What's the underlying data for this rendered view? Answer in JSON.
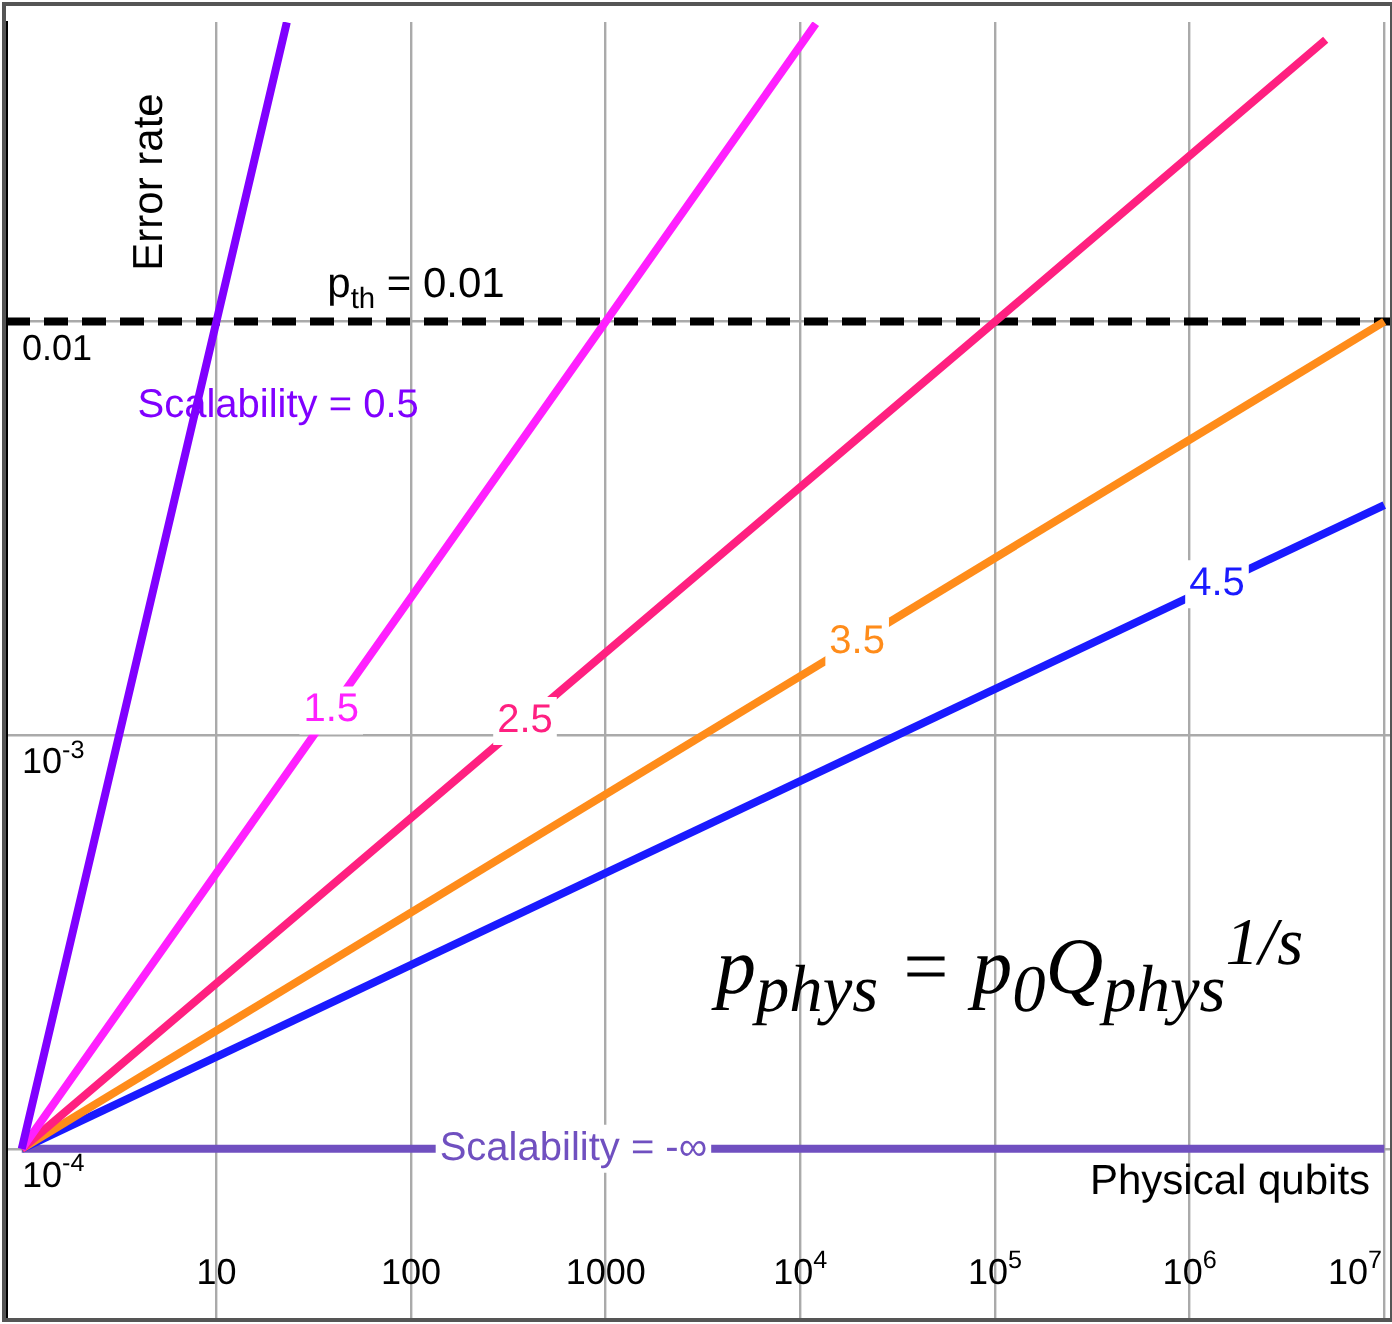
{
  "chart_data": {
    "type": "line",
    "xlabel": "Physical qubits",
    "ylabel": "Error rate",
    "xlim": [
      0.83,
      10700000
    ],
    "ylim": [
      3.9e-05,
      0.053
    ],
    "log": "xy",
    "grid": true,
    "legend": false,
    "marker": "none",
    "line_style": "solid",
    "xticks": [
      10,
      100,
      1000,
      {
        "value": 10000,
        "label": "10$^{4}$"
      },
      {
        "value": 100000,
        "label": "10$^{5}$"
      },
      {
        "value": 1000000,
        "label": "10$^{6}$"
      },
      {
        "value": 10000000,
        "label": "10$^{7}$"
      }
    ],
    "yticks": [
      {
        "value": 0.0001,
        "label": "10$^{-4}$"
      },
      {
        "value": 0.001,
        "label": "10$^{-3}$"
      },
      0.01
    ],
    "series": [
      {
        "name": "Scalability = 0.5",
        "color": "#8000ff",
        "x": [
          1,
          10,
          23
        ],
        "values": [
          0.0001,
          0.01,
          0.0529
        ]
      },
      {
        "name": "1.5",
        "color": "#ff20ff",
        "x": [
          1,
          1000,
          12000
        ],
        "values": [
          0.0001,
          0.01,
          0.0525
        ]
      },
      {
        "name": "2.5",
        "color": "#ff2080",
        "x": [
          1,
          100000,
          5000000
        ],
        "values": [
          0.0001,
          0.01,
          0.048
        ]
      },
      {
        "name": "3.5",
        "color": "#ff8c1a",
        "x": [
          1,
          10000000
        ],
        "values": [
          0.0001,
          0.01
        ]
      },
      {
        "name": "4.5",
        "color": "#1a1aff",
        "x": [
          1,
          10000000
        ],
        "values": [
          0.0001,
          0.0036
        ]
      },
      {
        "name": "Scalability = -∞",
        "color": "#7050c0",
        "x": [
          1,
          10000000
        ],
        "values": [
          0.0001,
          0.0001
        ]
      }
    ],
    "ref_lines": [
      {
        "axis": "y",
        "value": 0.01,
        "label": "p$_{th}$ = 0.01",
        "color": "#000000",
        "line_style": "dashed"
      }
    ],
    "annotations": [
      "p$_{phys}$ = p$_{0}$Q$_{phys}$$^{1/s}$"
    ]
  }
}
